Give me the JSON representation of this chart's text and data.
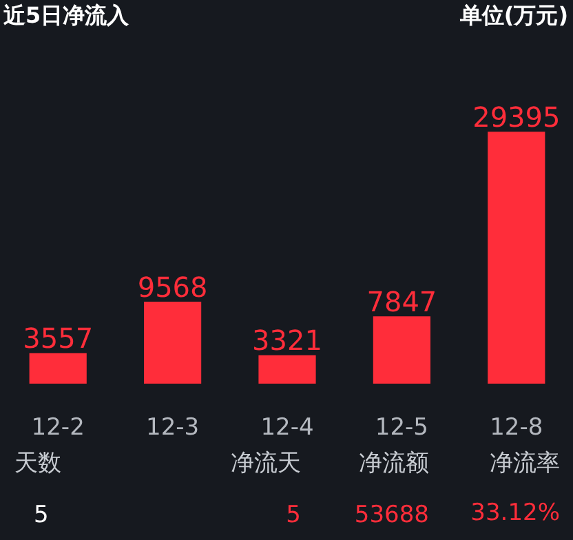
{
  "chart_data": {
    "type": "bar",
    "title": "近5日净流入",
    "subtitle": "单位(万元)",
    "categories": [
      "12-2",
      "12-3",
      "12-4",
      "12-5",
      "12-8"
    ],
    "values": [
      3557,
      9568,
      3321,
      7847,
      29395
    ],
    "color": "#ff2d3a",
    "data_labels": true,
    "grid": false,
    "annotations": [
      "天数",
      "净流天",
      "净流额",
      "净流率",
      "5",
      "5",
      "53688",
      "33.12%"
    ]
  }
}
